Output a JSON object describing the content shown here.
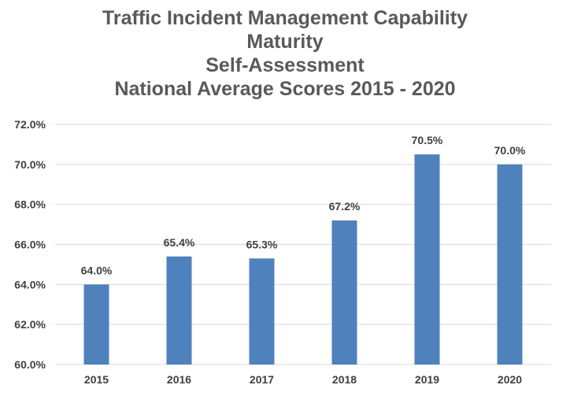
{
  "chart_data": {
    "type": "bar",
    "title_lines": [
      "Traffic Incident Management Capability",
      "Maturity",
      "Self-Assessment",
      "National Average Scores 2015 - 2020"
    ],
    "categories": [
      "2015",
      "2016",
      "2017",
      "2018",
      "2019",
      "2020"
    ],
    "values": [
      64.0,
      65.4,
      65.3,
      67.2,
      70.5,
      70.0
    ],
    "data_labels": [
      "64.0%",
      "65.4%",
      "65.3%",
      "67.2%",
      "70.5%",
      "70.0%"
    ],
    "y_ticks": [
      60.0,
      62.0,
      64.0,
      66.0,
      68.0,
      70.0,
      72.0
    ],
    "y_tick_labels": [
      "60.0%",
      "62.0%",
      "64.0%",
      "66.0%",
      "68.0%",
      "70.0%",
      "72.0%"
    ],
    "ylim": [
      60,
      72
    ],
    "xlabel": "",
    "ylabel": "",
    "grid": true,
    "legend": "none",
    "bar_color": "#4f81bd",
    "grid_color": "#d9d9d9",
    "text_color": "#404040"
  }
}
